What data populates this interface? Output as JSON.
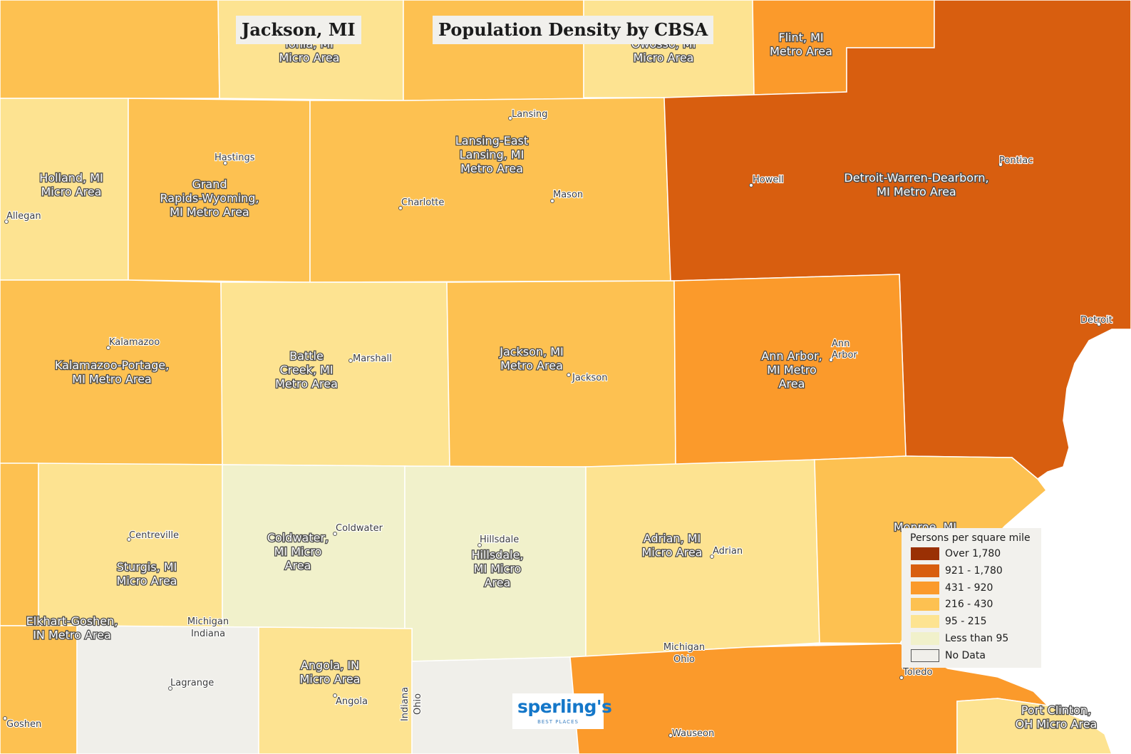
{
  "title": "Jackson, MI",
  "subtitle": "Population Density by CBSA",
  "colors": {
    "over_1780": "#9a3004",
    "c921_1780": "#d85e0f",
    "c431_920": "#fb9a2b",
    "c216_430": "#fdc151",
    "c95_215": "#fde391",
    "lt95": "#f1f1cb",
    "nodata": "#f0efea",
    "water": "#ffffff",
    "border": "#ffffff"
  },
  "legend": {
    "title": "Persons per square mile",
    "items": [
      {
        "label": "Over 1,780",
        "color": "#9a3004"
      },
      {
        "label": "921 - 1,780",
        "color": "#d85e0f"
      },
      {
        "label": "431 - 920",
        "color": "#fb9a2b"
      },
      {
        "label": "216 - 430",
        "color": "#fdc151"
      },
      {
        "label": "95 - 215",
        "color": "#fde391"
      },
      {
        "label": "Less than 95",
        "color": "#f1f1cb"
      },
      {
        "label": "No Data",
        "color": "#f0efea"
      }
    ]
  },
  "areas": [
    {
      "id": "ionia",
      "lines": [
        "Ionia, MI",
        "Micro Area"
      ],
      "class": "95 - 215"
    },
    {
      "id": "owosso",
      "lines": [
        "Owosso, MI",
        "Micro Area"
      ],
      "class": "95 - 215"
    },
    {
      "id": "flint",
      "lines": [
        "Flint, MI",
        "Metro Area"
      ],
      "class": "431 - 920"
    },
    {
      "id": "holland",
      "lines": [
        "Holland, MI",
        "Micro Area"
      ],
      "class": "95 - 215"
    },
    {
      "id": "grand-rapids",
      "lines": [
        "Grand",
        "Rapids-Wyoming,",
        "MI Metro Area"
      ],
      "class": "216 - 430"
    },
    {
      "id": "lansing",
      "lines": [
        "Lansing-East",
        "Lansing, MI",
        "Metro Area"
      ],
      "class": "216 - 430"
    },
    {
      "id": "detroit",
      "lines": [
        "Detroit-Warren-Dearborn,",
        "MI Metro Area"
      ],
      "class": "921 - 1,780"
    },
    {
      "id": "kalamazoo",
      "lines": [
        "Kalamazoo-Portage,",
        "MI Metro Area"
      ],
      "class": "216 - 430"
    },
    {
      "id": "battle-creek",
      "lines": [
        "Battle",
        "Creek, MI",
        "Metro Area"
      ],
      "class": "95 - 215"
    },
    {
      "id": "jackson",
      "lines": [
        "Jackson, MI",
        "Metro Area"
      ],
      "class": "216 - 430"
    },
    {
      "id": "ann-arbor",
      "lines": [
        "Ann Arbor,",
        "MI Metro",
        "Area"
      ],
      "class": "431 - 920"
    },
    {
      "id": "sturgis",
      "lines": [
        "Sturgis, MI",
        "Micro Area"
      ],
      "class": "95 - 215"
    },
    {
      "id": "coldwater",
      "lines": [
        "Coldwater,",
        "MI Micro",
        "Area"
      ],
      "class": "Less than 95"
    },
    {
      "id": "hillsdale",
      "lines": [
        "Hillsdale,",
        "MI Micro",
        "Area"
      ],
      "class": "Less than 95"
    },
    {
      "id": "adrian",
      "lines": [
        "Adrian, MI",
        "Micro Area"
      ],
      "class": "95 - 215"
    },
    {
      "id": "monroe",
      "lines": [
        "Monroe, MI"
      ],
      "class": "216 - 430"
    },
    {
      "id": "elkhart",
      "lines": [
        "Elkhart-Goshen,",
        "IN Metro Area"
      ],
      "class": "216 - 430"
    },
    {
      "id": "angola",
      "lines": [
        "Angola, IN",
        "Micro Area"
      ],
      "class": "95 - 215"
    },
    {
      "id": "port-clinton",
      "lines": [
        "Port Clinton,",
        "OH Micro Area"
      ],
      "class": "95 - 215"
    },
    {
      "id": "toledo",
      "lines": [],
      "class": "431 - 920"
    }
  ],
  "cities": [
    "Lansing",
    "Hastings",
    "Charlotte",
    "Mason",
    "Howell",
    "Pontiac",
    "Allegan",
    "Kalamazoo",
    "Marshall",
    "Jackson",
    "Ann Arbor",
    "Detroit",
    "Centreville",
    "Coldwater",
    "Hillsdale",
    "Adrian",
    "Lagrange",
    "Angola",
    "Goshen",
    "Toledo",
    "Wauseon"
  ],
  "state_labels": {
    "michigan_indiana": [
      "Michigan",
      "Indiana"
    ],
    "michigan_ohio": [
      "Michigan",
      "Ohio"
    ],
    "indiana_ohio": [
      "Indiana",
      "Ohio"
    ]
  },
  "logo": {
    "brand": "sperling's",
    "tagline": "BEST PLACES"
  }
}
